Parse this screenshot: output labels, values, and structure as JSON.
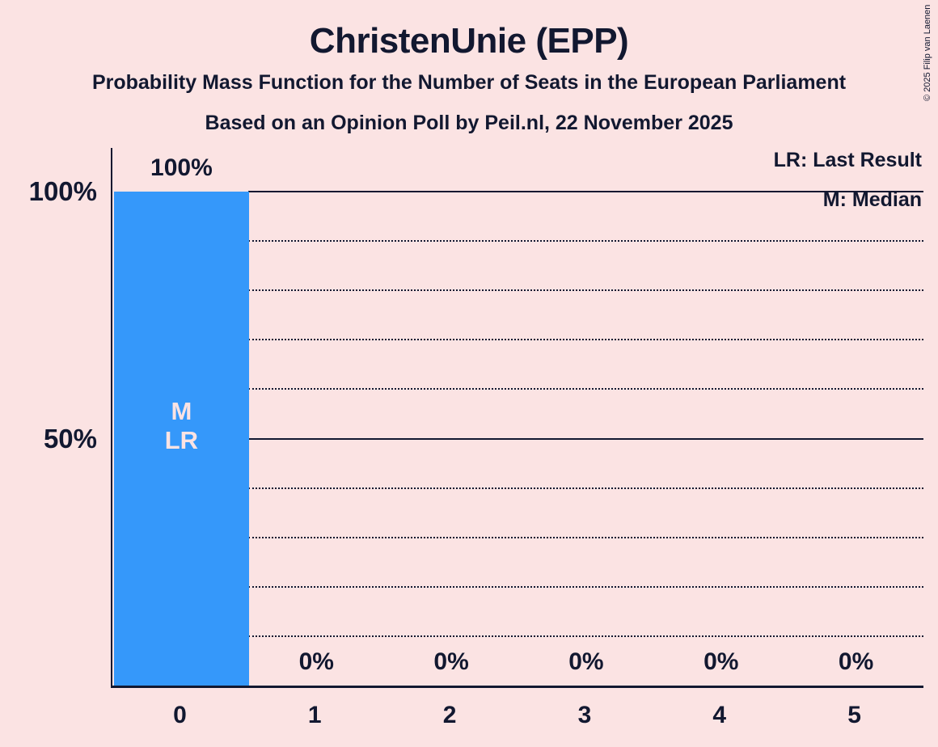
{
  "title": "ChristenUnie (EPP)",
  "subtitle1": "Probability Mass Function for the Number of Seats in the European Parliament",
  "subtitle2": "Based on an Opinion Poll by Peil.nl, 22 November 2025",
  "copyright": "© 2025 Filip van Laenen",
  "legend": {
    "lr": "LR: Last Result",
    "m": "M: Median"
  },
  "colors": {
    "background": "#fbe3e3",
    "text": "#121830",
    "bar": "#3598fa",
    "bar_label": "#fbe3e3"
  },
  "chart_data": {
    "type": "bar",
    "title": "ChristenUnie (EPP)",
    "subtitle": "Probability Mass Function for the Number of Seats in the European Parliament",
    "source_line": "Based on an Opinion Poll by Peil.nl, 22 November 2025",
    "categories": [
      "0",
      "1",
      "2",
      "3",
      "4",
      "5"
    ],
    "values": [
      100,
      0,
      0,
      0,
      0,
      0
    ],
    "value_labels": [
      "100%",
      "0%",
      "0%",
      "0%",
      "0%",
      "0%"
    ],
    "ylim": [
      0,
      100
    ],
    "grid": "on",
    "legend_position": "top-right",
    "y_ticks": [
      {
        "pct": 100,
        "label": "100%"
      },
      {
        "pct": 50,
        "label": "50%"
      }
    ],
    "gridlines": [
      {
        "pct": 100,
        "style": "solid"
      },
      {
        "pct": 90,
        "style": "dotted"
      },
      {
        "pct": 80,
        "style": "dotted"
      },
      {
        "pct": 70,
        "style": "dotted"
      },
      {
        "pct": 60,
        "style": "dotted"
      },
      {
        "pct": 50,
        "style": "solid"
      },
      {
        "pct": 40,
        "style": "dotted"
      },
      {
        "pct": 30,
        "style": "dotted"
      },
      {
        "pct": 20,
        "style": "dotted"
      },
      {
        "pct": 10,
        "style": "dotted"
      }
    ],
    "annotations": {
      "median_bar_index": 0,
      "last_result_bar_index": 0,
      "bar_inner_lines": [
        "M",
        "LR"
      ]
    }
  }
}
